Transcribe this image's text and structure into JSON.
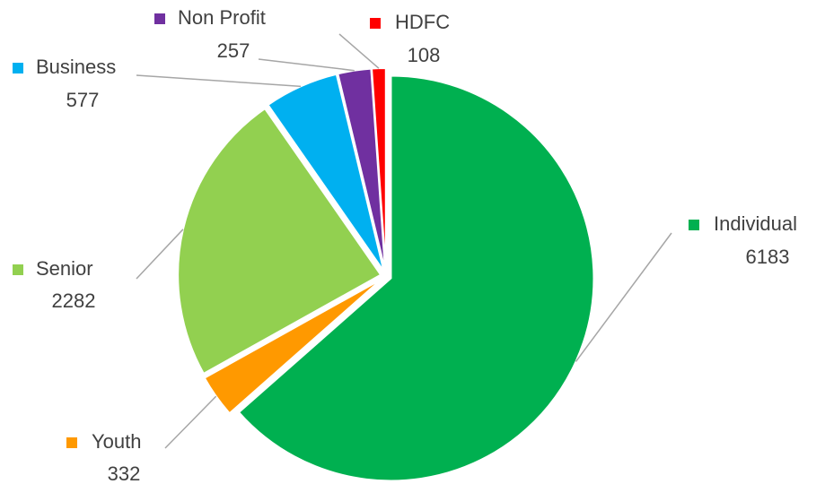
{
  "chart_data": {
    "type": "pie",
    "categories": [
      "Individual",
      "Youth",
      "Senior",
      "Business",
      "Non Profit",
      "HDFC"
    ],
    "values": [
      6183,
      332,
      2282,
      577,
      257,
      108
    ],
    "colors": [
      "#00b050",
      "#ff9900",
      "#92d050",
      "#00b0f0",
      "#7030a0",
      "#ff0000"
    ]
  }
}
